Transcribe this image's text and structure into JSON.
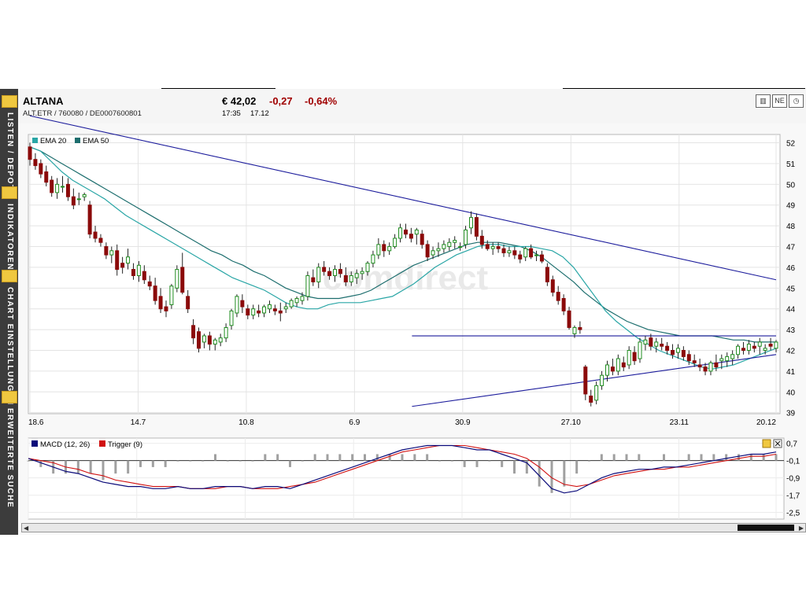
{
  "header": {
    "name": "ALTANA",
    "ids": "ALT.ETR  /  760080  /  DE0007600801",
    "price": "€ 42,02",
    "change": "-0,27",
    "change_pct": "-0,64%",
    "time": "17:35",
    "date": "17.12"
  },
  "sidebar": {
    "items": [
      {
        "label": "LISTEN / DEPOT",
        "icon": "folder-icon"
      },
      {
        "label": "INDIKATOREN",
        "icon": "indicator-icon"
      },
      {
        "label": "CHART EINSTELLUNGEN",
        "icon": "settings-list-icon"
      },
      {
        "label": "ERWEITERTE SUCHE",
        "icon": "search-icon"
      }
    ]
  },
  "toolbar": {
    "icons": [
      "bar-chart-icon",
      "news-icon",
      "clock-icon"
    ],
    "news_label": "NE"
  },
  "watermark": "comdirect",
  "colors": {
    "up": "#1f8c1f",
    "down": "#8b0a0a",
    "ema20": "#2aa6a6",
    "ema50": "#1d6e6e",
    "trend": "#1c1c9c",
    "macd": "#0b0b7a",
    "trigger": "#d01010",
    "hist": "#a0a0a0",
    "negative": "#a00000"
  },
  "chart_data": [
    {
      "type": "candlestick",
      "legend": [
        "EMA 20",
        "EMA 50"
      ],
      "x_tick_labels": [
        "18.6",
        "14.7",
        "10.8",
        "6.9",
        "30.9",
        "27.10",
        "23.11",
        "20.12"
      ],
      "y_ticks": [
        39,
        40,
        41,
        42,
        43,
        44,
        45,
        46,
        47,
        48,
        49,
        50,
        51,
        52
      ],
      "ylim": [
        38.95,
        52.4
      ],
      "grid": true,
      "candles": [
        [
          51.8,
          52.0,
          50.9,
          51.2
        ],
        [
          51.2,
          51.5,
          50.7,
          50.9
        ],
        [
          51.0,
          51.2,
          50.3,
          50.5
        ],
        [
          50.6,
          50.9,
          49.9,
          50.1
        ],
        [
          50.2,
          50.4,
          49.4,
          49.6
        ],
        [
          49.6,
          50.3,
          49.3,
          50.0
        ],
        [
          49.9,
          50.4,
          49.6,
          49.9
        ],
        [
          50.0,
          50.3,
          49.2,
          49.4
        ],
        [
          49.4,
          49.8,
          48.8,
          49.0
        ],
        [
          49.3,
          49.6,
          49.0,
          49.3
        ],
        [
          49.4,
          49.6,
          49.2,
          49.5
        ],
        [
          49.0,
          49.2,
          47.4,
          47.6
        ],
        [
          47.7,
          48.0,
          47.2,
          47.4
        ],
        [
          47.4,
          47.6,
          47.0,
          47.2
        ],
        [
          47.0,
          47.2,
          46.4,
          46.6
        ],
        [
          46.6,
          47.0,
          46.2,
          46.8
        ],
        [
          46.8,
          47.1,
          45.6,
          45.9
        ],
        [
          46.2,
          46.5,
          45.7,
          46.0
        ],
        [
          46.2,
          46.9,
          45.9,
          46.5
        ],
        [
          45.9,
          46.2,
          45.4,
          45.6
        ],
        [
          45.6,
          46.3,
          45.3,
          46.1
        ],
        [
          45.8,
          46.1,
          45.2,
          45.4
        ],
        [
          45.3,
          45.6,
          44.9,
          45.1
        ],
        [
          45.1,
          45.5,
          44.2,
          44.4
        ],
        [
          44.6,
          45.0,
          43.8,
          44.0
        ],
        [
          44.1,
          44.4,
          43.6,
          43.9
        ],
        [
          44.2,
          45.2,
          44.0,
          45.1
        ],
        [
          45.0,
          46.1,
          44.8,
          45.9
        ],
        [
          46.0,
          46.7,
          44.7,
          44.8
        ],
        [
          44.6,
          44.9,
          43.8,
          44.0
        ],
        [
          43.2,
          43.5,
          42.3,
          42.6
        ],
        [
          42.9,
          43.1,
          41.9,
          42.1
        ],
        [
          42.4,
          42.8,
          42.1,
          42.7
        ],
        [
          42.7,
          42.9,
          42.0,
          42.3
        ],
        [
          42.3,
          42.6,
          42.0,
          42.5
        ],
        [
          42.4,
          42.8,
          42.2,
          42.6
        ],
        [
          42.6,
          43.3,
          42.4,
          43.1
        ],
        [
          43.2,
          44.0,
          43.0,
          43.9
        ],
        [
          43.8,
          44.7,
          43.6,
          44.6
        ],
        [
          44.4,
          44.7,
          43.8,
          44.1
        ],
        [
          44.0,
          44.2,
          43.5,
          43.7
        ],
        [
          43.7,
          44.2,
          43.5,
          44.0
        ],
        [
          43.9,
          44.2,
          43.6,
          43.8
        ],
        [
          43.8,
          44.2,
          43.6,
          44.1
        ],
        [
          44.0,
          44.4,
          43.8,
          44.2
        ],
        [
          44.0,
          44.2,
          43.7,
          43.9
        ],
        [
          43.9,
          44.3,
          43.4,
          43.8
        ],
        [
          44.0,
          44.3,
          43.8,
          44.1
        ],
        [
          44.1,
          44.5,
          44.0,
          44.4
        ],
        [
          44.3,
          44.6,
          44.1,
          44.5
        ],
        [
          44.4,
          44.8,
          44.2,
          44.6
        ],
        [
          44.6,
          45.8,
          44.4,
          45.6
        ],
        [
          45.5,
          45.9,
          45.1,
          45.3
        ],
        [
          45.3,
          46.2,
          45.0,
          46.0
        ],
        [
          46.0,
          46.3,
          45.6,
          45.8
        ],
        [
          45.8,
          46.0,
          45.4,
          45.6
        ],
        [
          45.6,
          46.1,
          45.3,
          45.9
        ],
        [
          45.9,
          46.2,
          45.5,
          45.7
        ],
        [
          45.6,
          46.0,
          45.1,
          45.3
        ],
        [
          45.3,
          45.8,
          45.1,
          45.6
        ],
        [
          45.5,
          45.9,
          45.2,
          45.7
        ],
        [
          45.7,
          46.0,
          45.4,
          45.8
        ],
        [
          45.8,
          46.3,
          45.6,
          46.2
        ],
        [
          46.2,
          46.8,
          46.0,
          46.6
        ],
        [
          46.6,
          47.4,
          46.4,
          47.1
        ],
        [
          47.1,
          47.3,
          46.5,
          46.8
        ],
        [
          46.8,
          47.2,
          46.6,
          47.0
        ],
        [
          47.0,
          47.6,
          46.9,
          47.4
        ],
        [
          47.4,
          48.1,
          47.2,
          47.9
        ],
        [
          47.8,
          48.1,
          47.4,
          47.6
        ],
        [
          47.6,
          47.9,
          47.2,
          47.4
        ],
        [
          47.6,
          47.9,
          47.1,
          47.8
        ],
        [
          47.6,
          47.8,
          46.9,
          47.1
        ],
        [
          47.1,
          47.3,
          46.3,
          46.5
        ],
        [
          46.6,
          47.0,
          46.4,
          46.8
        ],
        [
          46.8,
          47.2,
          46.5,
          46.9
        ],
        [
          46.9,
          47.3,
          46.7,
          47.1
        ],
        [
          47.0,
          47.4,
          46.8,
          47.2
        ],
        [
          47.2,
          47.5,
          46.9,
          47.3
        ],
        [
          47.0,
          47.2,
          46.8,
          47.0
        ],
        [
          47.1,
          48.0,
          46.9,
          47.8
        ],
        [
          47.9,
          48.7,
          47.6,
          48.4
        ],
        [
          48.4,
          48.6,
          47.3,
          47.5
        ],
        [
          47.5,
          47.8,
          46.9,
          47.1
        ],
        [
          47.1,
          47.3,
          46.8,
          46.9
        ],
        [
          46.9,
          47.2,
          46.6,
          47.0
        ],
        [
          47.0,
          47.2,
          46.7,
          46.9
        ],
        [
          46.9,
          47.1,
          46.5,
          46.7
        ],
        [
          46.7,
          47.0,
          46.5,
          46.8
        ],
        [
          46.8,
          47.0,
          46.4,
          46.6
        ],
        [
          46.6,
          46.8,
          46.2,
          46.4
        ],
        [
          46.5,
          47.0,
          46.3,
          46.9
        ],
        [
          46.9,
          47.1,
          46.4,
          46.5
        ],
        [
          46.6,
          46.8,
          46.3,
          46.6
        ],
        [
          46.6,
          46.8,
          46.2,
          46.3
        ],
        [
          46.0,
          46.2,
          45.1,
          45.3
        ],
        [
          45.4,
          45.6,
          44.6,
          44.8
        ],
        [
          44.8,
          45.1,
          44.2,
          44.4
        ],
        [
          44.5,
          44.7,
          43.7,
          43.9
        ],
        [
          43.9,
          44.1,
          43.0,
          43.1
        ],
        [
          42.8,
          43.2,
          42.6,
          43.1
        ],
        [
          43.1,
          43.4,
          42.8,
          43.0
        ],
        [
          41.2,
          41.3,
          39.6,
          39.9
        ],
        [
          39.8,
          40.1,
          39.3,
          39.5
        ],
        [
          39.6,
          40.5,
          39.4,
          40.3
        ],
        [
          40.3,
          41.0,
          40.1,
          40.8
        ],
        [
          40.8,
          41.5,
          40.5,
          41.3
        ],
        [
          41.2,
          41.6,
          40.8,
          41.0
        ],
        [
          41.0,
          41.8,
          40.8,
          41.6
        ],
        [
          41.4,
          41.7,
          41.0,
          41.2
        ],
        [
          41.3,
          42.2,
          41.1,
          42.0
        ],
        [
          41.9,
          42.2,
          41.3,
          41.5
        ],
        [
          41.6,
          42.6,
          41.4,
          42.4
        ],
        [
          42.3,
          42.7,
          42.0,
          42.5
        ],
        [
          42.6,
          42.8,
          42.0,
          42.2
        ],
        [
          42.2,
          42.6,
          41.9,
          42.4
        ],
        [
          42.3,
          42.6,
          42.0,
          42.2
        ],
        [
          42.2,
          42.4,
          41.8,
          42.0
        ],
        [
          42.0,
          42.3,
          41.6,
          41.8
        ],
        [
          41.9,
          42.3,
          41.6,
          42.1
        ],
        [
          42.0,
          42.2,
          41.5,
          41.7
        ],
        [
          41.8,
          42.0,
          41.3,
          41.5
        ],
        [
          41.5,
          41.8,
          41.2,
          41.4
        ],
        [
          41.3,
          41.6,
          41.0,
          41.2
        ],
        [
          41.2,
          41.4,
          40.8,
          41.0
        ],
        [
          41.0,
          41.5,
          40.8,
          41.4
        ],
        [
          41.4,
          41.8,
          41.0,
          41.2
        ],
        [
          41.5,
          41.8,
          41.1,
          41.6
        ],
        [
          41.5,
          41.9,
          41.2,
          41.7
        ],
        [
          41.6,
          42.0,
          41.3,
          41.8
        ],
        [
          41.8,
          42.3,
          41.6,
          42.2
        ],
        [
          42.1,
          42.4,
          41.8,
          42.0
        ],
        [
          42.0,
          42.5,
          41.8,
          42.3
        ],
        [
          42.2,
          42.4,
          41.9,
          42.1
        ],
        [
          42.2,
          42.6,
          41.8,
          42.4
        ],
        [
          42.0,
          42.3,
          41.8,
          42.1
        ],
        [
          42.3,
          42.6,
          42.0,
          42.2
        ],
        [
          42.1,
          42.5,
          41.9,
          42.4
        ]
      ],
      "ema20": [
        51.8,
        51.6,
        51.1,
        50.6,
        50.2,
        49.9,
        49.6,
        49.3,
        48.9,
        48.5,
        48.2,
        47.9,
        47.6,
        47.3,
        47.0,
        46.7,
        46.4,
        46.1,
        45.8,
        45.5,
        45.3,
        45.1,
        44.9,
        44.6,
        44.3,
        44.1,
        44.0,
        44.0,
        44.2,
        44.3,
        44.3,
        44.3,
        44.4,
        44.5,
        44.6,
        44.9,
        45.2,
        45.6,
        46.0,
        46.3,
        46.6,
        46.8,
        47.0,
        47.1,
        47.1,
        47.0,
        47.0,
        47.0,
        46.9,
        46.8,
        46.5,
        46.0,
        45.3,
        44.6,
        43.9,
        43.4,
        43.0,
        42.6,
        42.3,
        42.0,
        41.8,
        41.6,
        41.4,
        41.2,
        41.1,
        41.2,
        41.3,
        41.5,
        41.7,
        41.9,
        42.1
      ],
      "ema50": [
        51.8,
        51.6,
        51.3,
        51.0,
        50.7,
        50.4,
        50.1,
        49.8,
        49.5,
        49.2,
        48.9,
        48.6,
        48.3,
        48.0,
        47.7,
        47.4,
        47.1,
        46.8,
        46.6,
        46.3,
        46.1,
        45.8,
        45.6,
        45.3,
        45.0,
        44.8,
        44.6,
        44.5,
        44.5,
        44.5,
        44.6,
        44.7,
        44.9,
        45.2,
        45.5,
        45.8,
        46.1,
        46.3,
        46.5,
        46.7,
        46.9,
        47.1,
        47.2,
        47.2,
        47.2,
        47.1,
        47.0,
        46.8,
        46.5,
        46.1,
        45.7,
        45.3,
        44.8,
        44.4,
        44.0,
        43.7,
        43.4,
        43.2,
        43.0,
        42.9,
        42.8,
        42.7,
        42.7,
        42.7,
        42.7,
        42.6,
        42.5,
        42.5,
        42.4,
        42.4,
        42.4
      ],
      "trendlines": [
        {
          "from": [
            0,
            53.3
          ],
          "to": [
            1,
            45.4
          ]
        },
        {
          "from": [
            0.512,
            42.7
          ],
          "to": [
            1,
            42.7
          ]
        },
        {
          "from": [
            0.512,
            39.3
          ],
          "to": [
            1,
            41.8
          ]
        }
      ]
    },
    {
      "type": "line",
      "legend": [
        "MACD (12, 26)",
        "Trigger (9)"
      ],
      "y_tick_labels": [
        "0,7",
        "-0,1",
        "-0,9",
        "-1,7",
        "-2,5"
      ],
      "y_ticks": [
        0.7,
        -0.1,
        -0.9,
        -1.7,
        -2.5
      ],
      "ylim": [
        -2.7,
        0.8
      ],
      "grid": true,
      "macd": [
        0.0,
        -0.2,
        -0.4,
        -0.6,
        -0.7,
        -0.9,
        -1.1,
        -1.2,
        -1.3,
        -1.3,
        -1.4,
        -1.4,
        -1.3,
        -1.4,
        -1.4,
        -1.3,
        -1.3,
        -1.3,
        -1.4,
        -1.3,
        -1.3,
        -1.4,
        -1.2,
        -1.0,
        -0.8,
        -0.6,
        -0.4,
        -0.2,
        0.0,
        0.2,
        0.4,
        0.5,
        0.6,
        0.6,
        0.6,
        0.5,
        0.4,
        0.4,
        0.2,
        0.0,
        -0.2,
        -0.8,
        -1.4,
        -1.6,
        -1.5,
        -1.2,
        -0.9,
        -0.7,
        -0.6,
        -0.5,
        -0.5,
        -0.4,
        -0.4,
        -0.3,
        -0.2,
        -0.1,
        0.0,
        0.1,
        0.2,
        0.2,
        0.3
      ],
      "trigger": [
        0.0,
        -0.1,
        -0.2,
        -0.4,
        -0.5,
        -0.7,
        -0.8,
        -1.0,
        -1.1,
        -1.2,
        -1.3,
        -1.3,
        -1.3,
        -1.4,
        -1.4,
        -1.4,
        -1.3,
        -1.3,
        -1.4,
        -1.4,
        -1.4,
        -1.3,
        -1.2,
        -1.1,
        -0.9,
        -0.7,
        -0.5,
        -0.3,
        -0.1,
        0.1,
        0.3,
        0.4,
        0.5,
        0.6,
        0.6,
        0.6,
        0.5,
        0.4,
        0.3,
        0.2,
        0.0,
        -0.4,
        -0.9,
        -1.2,
        -1.3,
        -1.2,
        -1.0,
        -0.8,
        -0.7,
        -0.6,
        -0.5,
        -0.5,
        -0.4,
        -0.4,
        -0.3,
        -0.2,
        -0.1,
        0.0,
        0.1,
        0.1,
        0.2
      ]
    }
  ]
}
